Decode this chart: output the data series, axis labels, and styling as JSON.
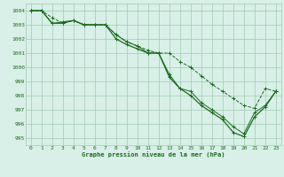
{
  "line1": {
    "x": [
      0,
      1,
      2,
      3,
      4,
      5,
      6,
      7,
      8,
      9,
      10,
      11,
      12,
      13,
      14,
      15,
      16,
      17,
      18,
      19,
      20,
      21,
      22,
      23
    ],
    "y": [
      1004,
      1004,
      1003.5,
      1003.1,
      1003.3,
      1003.0,
      1003.0,
      1003.0,
      1002.3,
      1001.8,
      1001.5,
      1001.2,
      1001.0,
      1001.0,
      1000.4,
      1000.0,
      999.4,
      998.8,
      998.3,
      997.8,
      997.3,
      997.1,
      998.5,
      998.3
    ],
    "color": "#1a6b1a",
    "linewidth": 0.7,
    "linestyle": "--",
    "marker": "+"
  },
  "line2": {
    "x": [
      0,
      1,
      2,
      3,
      4,
      5,
      6,
      7,
      8,
      9,
      10,
      11,
      12,
      13,
      14,
      15,
      16,
      17,
      18,
      19,
      20,
      21,
      22,
      23
    ],
    "y": [
      1004,
      1004,
      1003.1,
      1003.1,
      1003.3,
      1003.0,
      1003.0,
      1003.0,
      1002.3,
      1001.8,
      1001.5,
      1001.0,
      1001.0,
      999.5,
      998.5,
      998.3,
      997.5,
      997.0,
      996.5,
      995.8,
      995.3,
      996.8,
      997.3,
      998.3
    ],
    "color": "#1a6b1a",
    "linewidth": 0.7,
    "linestyle": "-",
    "marker": "+"
  },
  "line3": {
    "x": [
      0,
      1,
      2,
      3,
      4,
      5,
      6,
      7,
      8,
      9,
      10,
      11,
      12,
      13,
      14,
      15,
      16,
      17,
      18,
      19,
      20,
      21,
      22,
      23
    ],
    "y": [
      1004,
      1004,
      1003.1,
      1003.2,
      1003.3,
      1003.0,
      1003.0,
      1003.0,
      1002.0,
      1001.6,
      1001.3,
      1001.0,
      1001.0,
      999.3,
      998.5,
      998.0,
      997.3,
      996.8,
      996.3,
      995.4,
      995.1,
      996.5,
      997.2,
      998.3
    ],
    "color": "#1a6b1a",
    "linewidth": 0.9,
    "linestyle": "-",
    "marker": "+"
  },
  "bg_color": "#d8f0e8",
  "grid_color": "#a0c8b0",
  "text_color": "#1a6b1a",
  "xlabel": "Graphe pression niveau de la mer (hPa)",
  "ylim": [
    994.5,
    1004.5
  ],
  "xlim": [
    -0.5,
    23.5
  ],
  "yticks": [
    995,
    996,
    997,
    998,
    999,
    1000,
    1001,
    1002,
    1003,
    1004
  ],
  "xticks": [
    0,
    1,
    2,
    3,
    4,
    5,
    6,
    7,
    8,
    9,
    10,
    11,
    12,
    13,
    14,
    15,
    16,
    17,
    18,
    19,
    20,
    21,
    22,
    23
  ]
}
